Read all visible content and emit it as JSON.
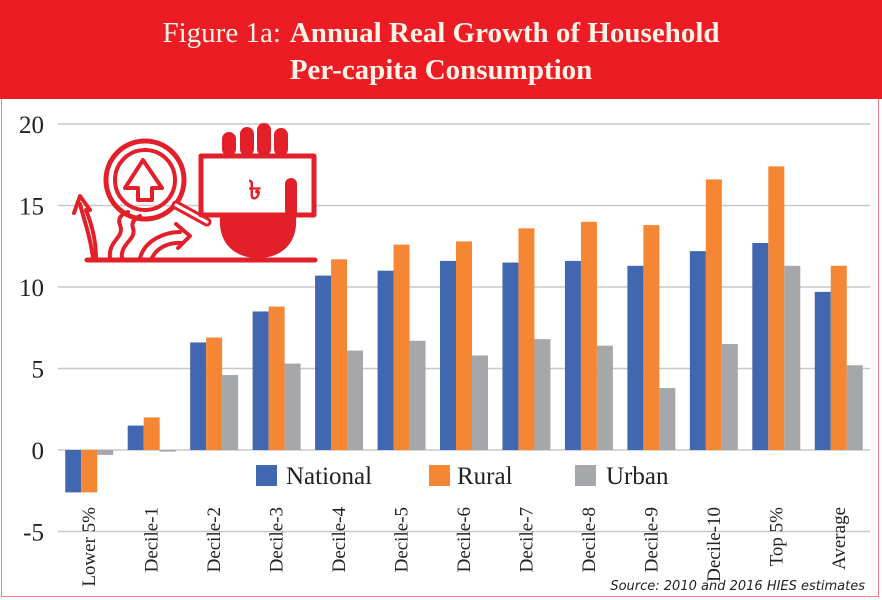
{
  "header": {
    "prefix": "Figure 1a:",
    "title_line1": "Annual Real Growth of Household",
    "title_line2": "Per-capita Consumption"
  },
  "colors": {
    "header_bg": "#ed1c24",
    "header_text": "#fdf3e6",
    "national": "#4167b1",
    "rural": "#f58634",
    "urban": "#a5a7aa",
    "grid": "#c8c8c8",
    "icon": "#e3202a"
  },
  "icon": {
    "name": "growth-magnifier-taka-hand-icon",
    "currency_symbol": "৳"
  },
  "source": "Source: 2010 and 2016 HIES estimates",
  "chart_data": {
    "type": "bar",
    "title": "Figure 1a: Annual Real Growth of Household Per-capita Consumption",
    "xlabel": "",
    "ylabel": "",
    "ylim": [
      -5,
      20
    ],
    "yticks": [
      -5,
      0,
      5,
      10,
      15,
      20
    ],
    "ytick_labels": [
      "-5",
      "0",
      "5",
      "10",
      "15",
      "20"
    ],
    "grid": true,
    "legend_position": "center-bottom-inside",
    "categories": [
      "Lower 5%",
      "Decile-1",
      "Decile-2",
      "Decile-3",
      "Decile-4",
      "Decile-5",
      "Decile-6",
      "Decile-7",
      "Decile-8",
      "Decile-9",
      "Decile-10",
      "Top 5%",
      "Average"
    ],
    "series": [
      {
        "name": "National",
        "color": "#4167b1",
        "values": [
          -2.6,
          1.5,
          6.6,
          8.5,
          10.7,
          11.0,
          11.6,
          11.5,
          11.6,
          11.3,
          12.2,
          12.7,
          9.7
        ]
      },
      {
        "name": "Rural",
        "color": "#f58634",
        "values": [
          -2.6,
          2.0,
          6.9,
          8.8,
          11.7,
          12.6,
          12.8,
          13.6,
          14.0,
          13.8,
          16.6,
          17.4,
          11.3
        ]
      },
      {
        "name": "Urban",
        "color": "#a5a7aa",
        "values": [
          -0.3,
          -0.1,
          4.6,
          5.3,
          6.1,
          6.7,
          5.8,
          6.8,
          6.4,
          3.8,
          6.5,
          11.3,
          5.2
        ]
      }
    ]
  }
}
